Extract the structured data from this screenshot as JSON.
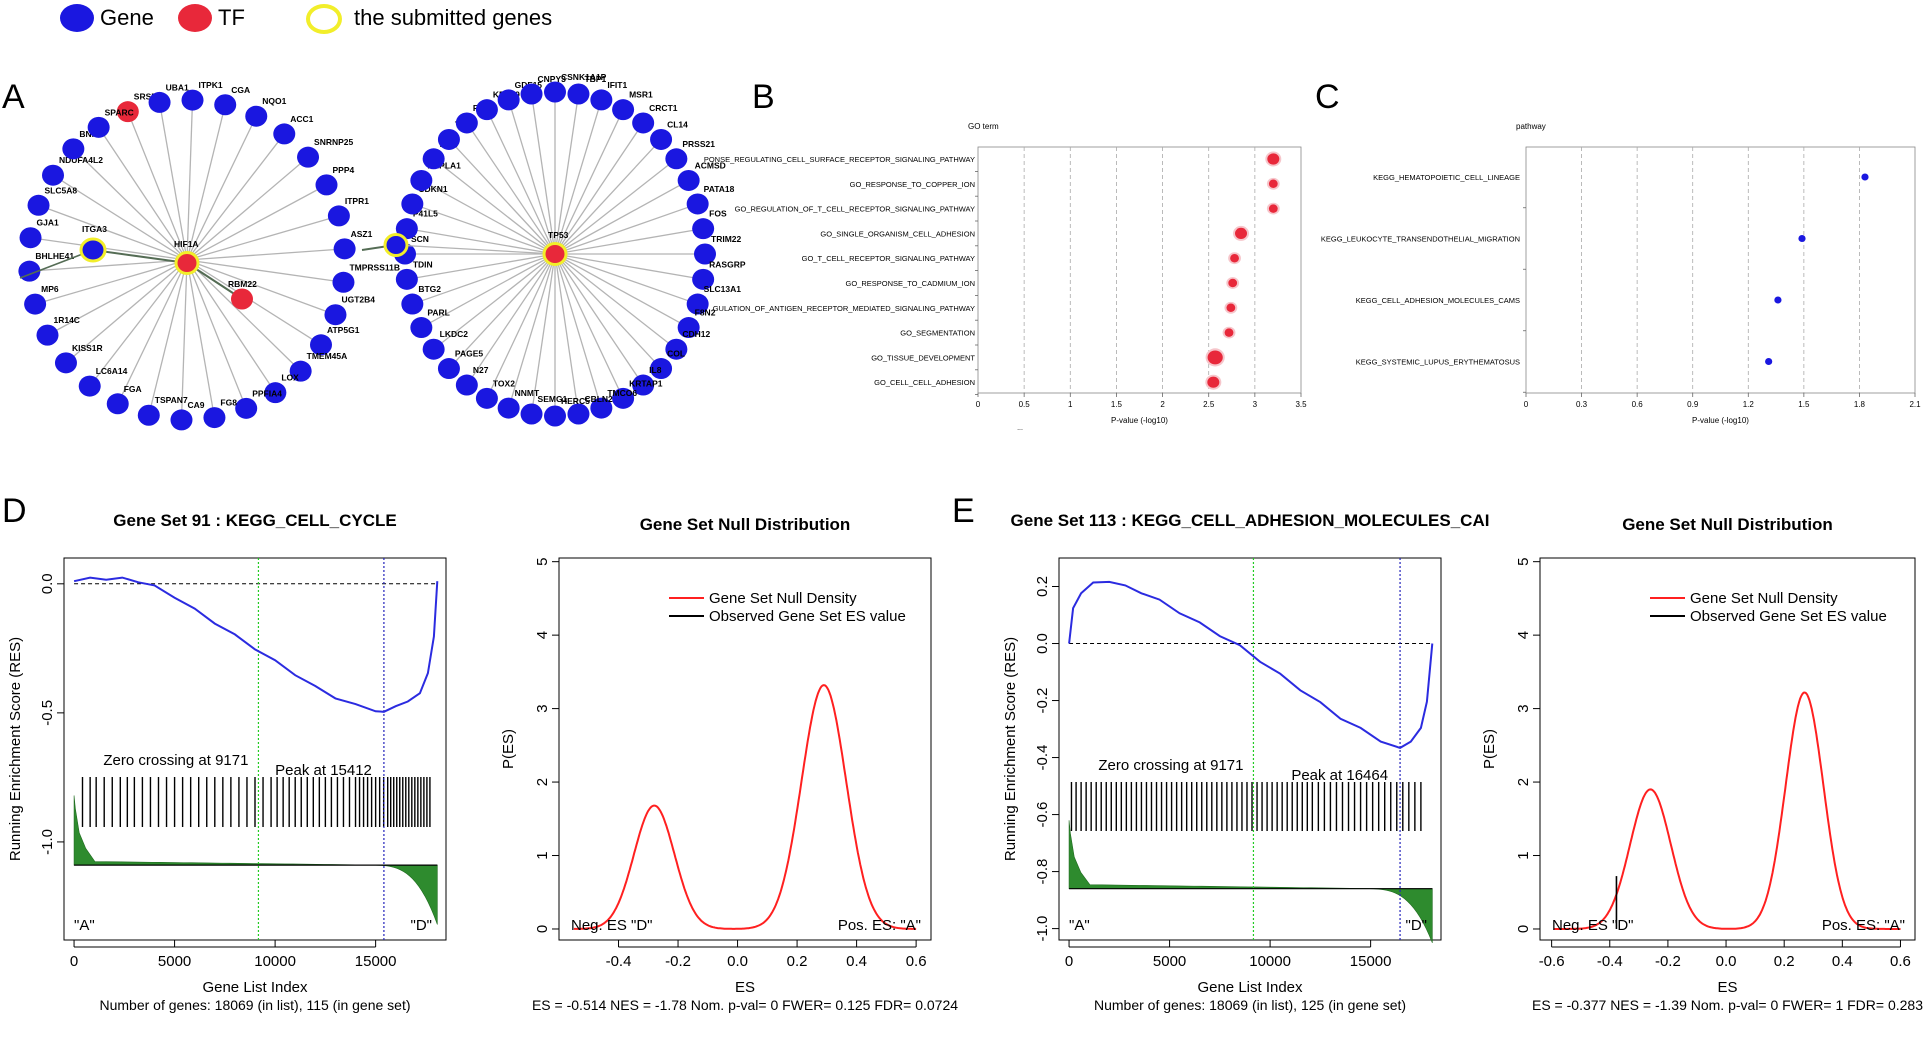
{
  "legend": {
    "items": [
      {
        "label": "Gene",
        "color": "#1a17e0",
        "style": "fill"
      },
      {
        "label": "TF",
        "color": "#e8283a",
        "style": "fill"
      },
      {
        "label": "the submitted genes",
        "color": "#f2ee2a",
        "style": "ring"
      }
    ]
  },
  "panels": {
    "a": "A",
    "b": "B",
    "c": "C",
    "d": "D",
    "e": "E"
  },
  "network": {
    "hif1a_hub": "HIF1A",
    "hif1a_ring": [
      "SRSF9",
      "UBA1",
      "ITPK1",
      "CGA",
      "NQO1",
      "ACC1",
      "SNRNP25",
      "PPP4",
      "ITPR1",
      "ASZ1",
      "TMPRSS11B",
      "UGT2B4",
      "ATP5G1",
      "TMEM45A",
      "LOX",
      "PPFIA4",
      "FG8",
      "CA9",
      "TSPAN7",
      "FGA",
      "LC6A14",
      "KISS1R",
      "1R14C",
      "MP6",
      "BHLHE41",
      "GJA1",
      "SLC5A8",
      "NDUFA4L2",
      "BNIP3",
      "SPARC"
    ],
    "hif1a_extra": [
      "ITGA3",
      "RBM22"
    ],
    "tp53_hub": "TP53",
    "tp53_ring": [
      "IFIT1",
      "MSR1",
      "CRCT1",
      "CL14",
      "PRSS21",
      "ACMSD",
      "PATA18",
      "FOS",
      "TRIM22",
      "RASGRP",
      "SLC13A1",
      "F8N2",
      "CDH12",
      "COL",
      "IL8",
      "KRTAP1",
      "TMCO6",
      "CBLN2",
      "HERC5",
      "SEMG1",
      "NNMT",
      "TOX2",
      "N27",
      "PAGE5",
      "LKDC2",
      "PARL",
      "BTG2",
      "TDIN",
      "SCN",
      "P41L5",
      "CDKN1",
      "PNPLA1",
      "EDN",
      "TTTY",
      "FPR1",
      "KRT19",
      "GDF15",
      "CNPY3",
      "CSNK1A1P",
      "TBP1"
    ]
  },
  "chart_data": [
    {
      "type": "scatter",
      "panel": "B",
      "title": "GO term",
      "xlabel": "P-value (-log10)",
      "xlim": [
        0,
        3.5
      ],
      "xticks": [
        "0",
        "0.5",
        "1",
        "1.5",
        "2",
        "2.5",
        "3",
        "3.5"
      ],
      "categories": [
        "PONSE_REGULATING_CELL_SURFACE_RECEPTOR_SIGNALING_PATHWAY",
        "GO_RESPONSE_TO_COPPER_ION",
        "GO_REGULATION_OF_T_CELL_RECEPTOR_SIGNALING_PATHWAY",
        "GO_SINGLE_ORGANISM_CELL_ADHESION",
        "GO_T_CELL_RECEPTOR_SIGNALING_PATHWAY",
        "GO_RESPONSE_TO_CADMIUM_ION",
        "GULATION_OF_ANTIGEN_RECEPTOR_MEDIATED_SIGNALING_PATHWAY",
        "GO_SEGMENTATION",
        "GO_TISSUE_DEVELOPMENT",
        "GO_CELL_CELL_ADHESION"
      ],
      "values": [
        3.2,
        3.2,
        3.2,
        2.85,
        2.78,
        2.76,
        2.74,
        2.72,
        2.57,
        2.55
      ],
      "sizes": [
        2,
        1,
        1,
        2,
        1,
        1,
        1,
        1,
        3,
        2
      ],
      "color": "#e8283a",
      "footer": "..."
    },
    {
      "type": "scatter",
      "panel": "C",
      "title": "pathway",
      "xlabel": "P-value (-log10)",
      "xlim": [
        0,
        2.1
      ],
      "xticks": [
        "0",
        "0.3",
        "0.6",
        "0.9",
        "1.2",
        "1.5",
        "1.8",
        "2.1"
      ],
      "categories": [
        "KEGG_HEMATOPOIETIC_CELL_LINEAGE",
        "KEGG_LEUKOCYTE_TRANSENDOTHELIAL_MIGRATION",
        "KEGG_CELL_ADHESION_MOLECULES_CAMS",
        "KEGG_SYSTEMIC_LUPUS_ERYTHEMATOSUS"
      ],
      "values": [
        1.83,
        1.49,
        1.36,
        1.31
      ],
      "color": "#1a17e0"
    },
    {
      "type": "line",
      "panel": "D",
      "title": "Gene Set  91 : KEGG_CELL_CYCLE",
      "xlabel": "Gene List Index",
      "ylabel": "Running Enrichment Score (RES)",
      "xlim": [
        -500,
        18500
      ],
      "ylim": [
        -1.38,
        0.1
      ],
      "xticks": [
        0,
        5000,
        10000,
        15000
      ],
      "yticks": [
        {
          "v": 0,
          "t": "0.0"
        },
        {
          "v": -0.5,
          "t": "-0.5"
        },
        {
          "v": -1,
          "t": "-1.0"
        }
      ],
      "x": [
        0,
        800,
        1600,
        2400,
        3200,
        4000,
        5000,
        6000,
        7000,
        8000,
        9000,
        10000,
        11000,
        12000,
        13000,
        14000,
        15000,
        15412,
        16000,
        16600,
        17200,
        17600,
        17900,
        18069
      ],
      "y": [
        0.01,
        0.02,
        0.02,
        0.02,
        0.01,
        -0.01,
        -0.05,
        -0.1,
        -0.15,
        -0.2,
        -0.25,
        -0.3,
        -0.35,
        -0.4,
        -0.44,
        -0.47,
        -0.49,
        -0.5,
        -0.47,
        -0.46,
        -0.42,
        -0.35,
        -0.2,
        0.01
      ],
      "zero_crossing": 9171,
      "peak": 15412,
      "zero_text": "Zero crossing at 9171",
      "peak_text": "Peak at 15412",
      "ranked_list": {
        "base": -1.09,
        "start": -0.82,
        "end": -1.31
      },
      "end_labels": [
        "\"A\"",
        "\"D\""
      ],
      "footer": "Number of genes: 18069 (in list), 115 (in gene set)",
      "hits": [
        420,
        800,
        1100,
        1500,
        1900,
        2300,
        2650,
        3000,
        3400,
        3800,
        4200,
        4600,
        5000,
        5400,
        5800,
        6200,
        6600,
        7000,
        7400,
        7800,
        8200,
        8600,
        9000,
        9400,
        9800,
        10100,
        10400,
        10700,
        11000,
        11300,
        11600,
        11900,
        12200,
        12500,
        12800,
        13100,
        13400,
        13700,
        14000,
        14200,
        14400,
        14600,
        14800,
        15000,
        15200,
        15400,
        15600,
        15750,
        15900,
        16050,
        16200,
        16350,
        16500,
        16650,
        16800,
        16950,
        17100,
        17250,
        17400,
        17550,
        17700
      ]
    },
    {
      "type": "line",
      "panel": "D",
      "title": "Gene Set Null Distribution",
      "xlabel": "ES",
      "ylabel": "P(ES)",
      "xlim": [
        -0.6,
        0.65
      ],
      "ylim": [
        -0.15,
        5.05
      ],
      "xticks": [
        {
          "v": -0.4,
          "t": "-0.4"
        },
        {
          "v": -0.2,
          "t": "-0.2"
        },
        {
          "v": 0,
          "t": "0.0"
        },
        {
          "v": 0.2,
          "t": "0.2"
        },
        {
          "v": 0.4,
          "t": "0.4"
        },
        {
          "v": 0.6,
          "t": "0.6"
        }
      ],
      "yticks": [
        0,
        1,
        2,
        3,
        4,
        5
      ],
      "peaks": [
        {
          "mu": -0.28,
          "sigma": 0.068,
          "height": 1.68
        },
        {
          "mu": 0.29,
          "sigma": 0.075,
          "height": 3.32
        }
      ],
      "observed_es": -0.514,
      "series": [
        {
          "name": "Gene Set Null Density",
          "color": "#ff2020"
        },
        {
          "name": "Observed Gene Set ES value",
          "color": "#000000"
        }
      ],
      "neg_label": "Neg. ES \"D\"",
      "pos_label": "Pos. ES: \"A\"",
      "footer": "ES = -0.514  NES = -1.78 Nom. p-val= 0 FWER= 0.125 FDR= 0.0724"
    },
    {
      "type": "line",
      "panel": "E",
      "title": "Gene Set  113 : KEGG_CELL_ADHESION_MOLECULES_CAI",
      "xlabel": "Gene List Index",
      "ylabel": "Running Enrichment Score (RES)",
      "xlim": [
        -500,
        18500
      ],
      "ylim": [
        -1.04,
        0.3
      ],
      "xticks": [
        0,
        5000,
        10000,
        15000
      ],
      "yticks": [
        {
          "v": 0.2,
          "t": "0.2"
        },
        {
          "v": 0,
          "t": "0.0"
        },
        {
          "v": -0.2,
          "t": "-0.2"
        },
        {
          "v": -0.4,
          "t": "-0.4"
        },
        {
          "v": -0.6,
          "t": "-0.6"
        },
        {
          "v": -0.8,
          "t": "-0.8"
        },
        {
          "v": -1,
          "t": "-1.0"
        }
      ],
      "x": [
        0,
        200,
        600,
        1200,
        2000,
        2800,
        3600,
        4500,
        5500,
        6500,
        7500,
        8500,
        9500,
        10500,
        11500,
        12500,
        13500,
        14500,
        15500,
        16464,
        17000,
        17500,
        17800,
        18069
      ],
      "y": [
        0.0,
        0.12,
        0.18,
        0.21,
        0.22,
        0.2,
        0.18,
        0.15,
        0.11,
        0.07,
        0.03,
        -0.01,
        -0.06,
        -0.11,
        -0.16,
        -0.21,
        -0.26,
        -0.3,
        -0.34,
        -0.37,
        -0.34,
        -0.3,
        -0.2,
        0.0
      ],
      "zero_crossing": 9171,
      "peak": 16464,
      "zero_text": "Zero crossing at 9171",
      "peak_text": "Peak at 16464",
      "ranked_list": {
        "base": -0.86,
        "start": -0.62,
        "end": -1.04
      },
      "end_labels": [
        "\"A\"",
        "\"D\""
      ],
      "footer": "Number of genes: 18069 (in list), 125 (in gene set)",
      "hits": [
        120,
        350,
        600,
        850,
        1100,
        1350,
        1600,
        1850,
        2100,
        2350,
        2600,
        2850,
        3100,
        3350,
        3600,
        3850,
        4100,
        4350,
        4600,
        4850,
        5100,
        5350,
        5600,
        5850,
        6100,
        6350,
        6600,
        6850,
        7100,
        7350,
        7600,
        7850,
        8100,
        8350,
        8600,
        8850,
        9100,
        9350,
        9600,
        9850,
        10100,
        10350,
        10600,
        10850,
        11100,
        11350,
        11600,
        11850,
        12100,
        12400,
        12700,
        13000,
        13300,
        13600,
        13900,
        14200,
        14500,
        14800,
        15100,
        15400,
        15700,
        16000,
        16300,
        16600,
        16900,
        17200,
        17500
      ]
    },
    {
      "type": "line",
      "panel": "E",
      "title": "Gene Set Null Distribution",
      "xlabel": "ES",
      "ylabel": "P(ES)",
      "xlim": [
        -0.64,
        0.65
      ],
      "ylim": [
        -0.15,
        5.05
      ],
      "xticks": [
        {
          "v": -0.6,
          "t": "-0.6"
        },
        {
          "v": -0.4,
          "t": "-0.4"
        },
        {
          "v": -0.2,
          "t": "-0.2"
        },
        {
          "v": 0,
          "t": "0.0"
        },
        {
          "v": 0.2,
          "t": "0.2"
        },
        {
          "v": 0.4,
          "t": "0.4"
        },
        {
          "v": 0.6,
          "t": "0.6"
        }
      ],
      "yticks": [
        0,
        1,
        2,
        3,
        4,
        5
      ],
      "peaks": [
        {
          "mu": -0.26,
          "sigma": 0.07,
          "height": 1.9
        },
        {
          "mu": 0.27,
          "sigma": 0.065,
          "height": 3.22
        }
      ],
      "observed_es": -0.377,
      "observed_height": 0.72,
      "series": [
        {
          "name": "Gene Set Null Density",
          "color": "#ff2020"
        },
        {
          "name": "Observed Gene Set ES value",
          "color": "#000000"
        }
      ],
      "neg_label": "Neg. ES \"D\"",
      "pos_label": "Pos. ES: \"A\"",
      "footer": "ES = -0.377  NES = -1.39 Nom. p-val= 0 FWER= 1 FDR= 0.283"
    }
  ]
}
